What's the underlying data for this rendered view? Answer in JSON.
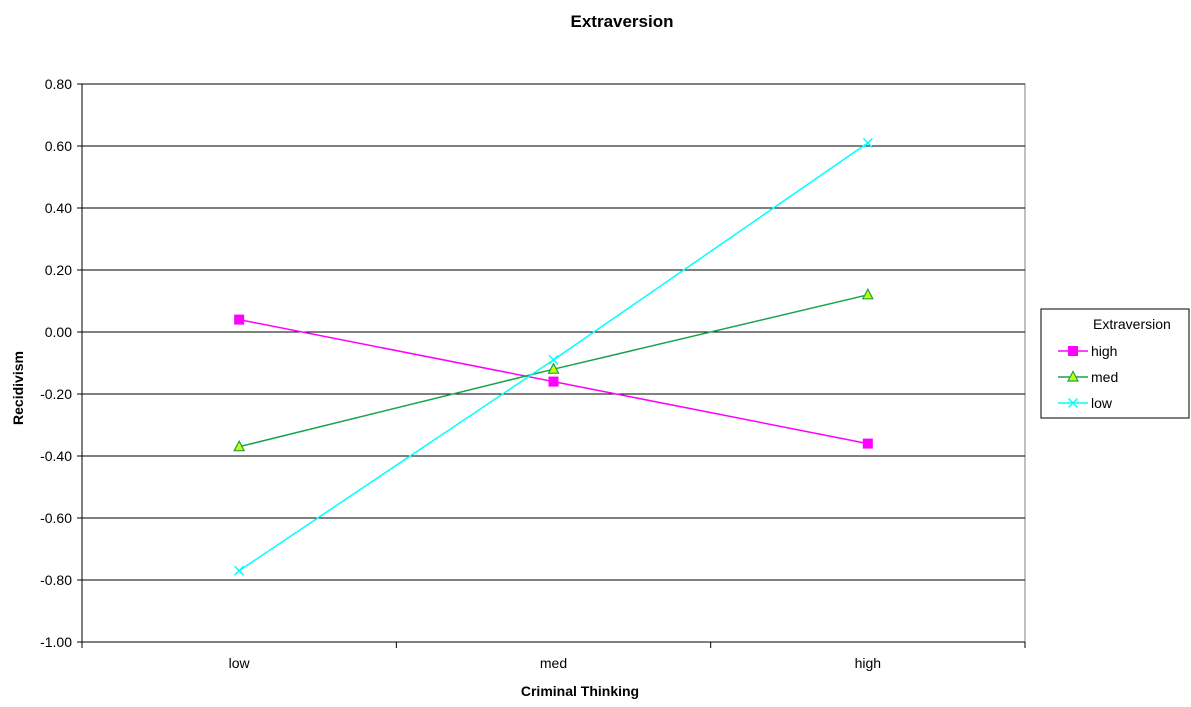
{
  "chart_data": {
    "type": "line",
    "title": "Extraversion",
    "xlabel": "Criminal Thinking",
    "ylabel": "Recidivism",
    "categories": [
      "low",
      "med",
      "high"
    ],
    "y_ticks": [
      "0.80",
      "0.60",
      "0.40",
      "0.20",
      "0.00",
      "-0.20",
      "-0.40",
      "-0.60",
      "-0.80",
      "-1.00"
    ],
    "ylim": [
      -1.0,
      0.8
    ],
    "grid": true,
    "legend": {
      "title": "Extraversion",
      "placement": "right"
    },
    "series": [
      {
        "name": "high",
        "values": [
          0.04,
          -0.16,
          -0.36
        ],
        "color": "#ff00ff",
        "marker": "square"
      },
      {
        "name": "med",
        "values": [
          -0.37,
          -0.12,
          0.12
        ],
        "color": "#17a34a",
        "marker": "triangle",
        "marker_fill": "#ccff00"
      },
      {
        "name": "low",
        "values": [
          -0.77,
          -0.09,
          0.61
        ],
        "color": "#00ffff",
        "marker": "x"
      }
    ]
  }
}
